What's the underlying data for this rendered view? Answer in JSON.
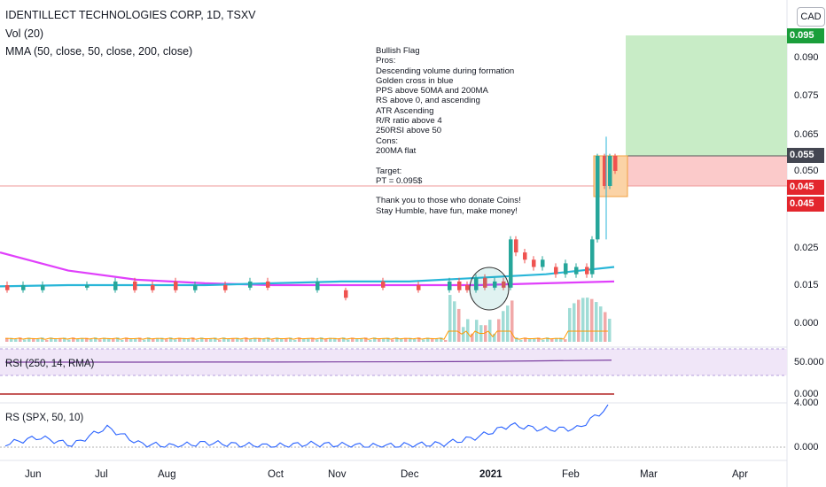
{
  "header": {
    "title": "IDENTILLECT TECHNOLOGIES CORP, 1D, TSXV",
    "vol_label": "Vol (20)",
    "mma_label": "MMA (50, close, 50, close, 200, close)",
    "currency": "CAD"
  },
  "note": {
    "lines": [
      "Bullish Flag",
      "Pros:",
      "Descending volume during formation",
      "Golden cross in blue",
      "PPS above 50MA and 200MA",
      "RS above 0, and ascending",
      "ATR Ascending",
      "R/R ratio above 4",
      "250RSI above 50",
      "Cons:",
      "200MA flat",
      "",
      "Target:",
      "PT = 0.095$",
      "",
      "Thank you to those who donate Coins!",
      "Stay Humble, have fun, make money!"
    ]
  },
  "price_tags": {
    "target": "0.095",
    "last": "0.055",
    "stop1": "0.045",
    "stop2": "0.045"
  },
  "colors": {
    "up": "#26a69a",
    "down": "#ef5350",
    "ma50": "#29b6d8",
    "ma200": "#e040fb",
    "target_zone": "#c8ecc6",
    "stop_zone": "#fbcaca",
    "rsi": "#7b3fa0",
    "rs": "#2962ff"
  },
  "chart_data": [
    {
      "type": "candlestick",
      "title": "IDENTILLECT TECHNOLOGIES CORP, 1D, TSXV",
      "y_ticks": [
        "0.095",
        "0.090",
        "0.075",
        "0.065",
        "0.050",
        "0.025",
        "0.015",
        "0.000"
      ],
      "x_ticks": [
        "Jun",
        "Jul",
        "Aug",
        "Oct",
        "Nov",
        "Dec",
        "2021",
        "Feb",
        "Mar",
        "Apr"
      ],
      "series": [
        {
          "name": "MMA 50",
          "values": [
            0.0145,
            0.015,
            0.015,
            0.015,
            0.0155,
            0.016,
            0.016,
            0.017,
            0.018,
            0.02
          ]
        },
        {
          "name": "MMA 200",
          "values": [
            0.024,
            0.019,
            0.0165,
            0.0155,
            0.015,
            0.015,
            0.015,
            0.015,
            0.0155,
            0.016
          ]
        }
      ],
      "trade_setup": {
        "target": 0.095,
        "entry": 0.055,
        "stop": 0.045
      }
    },
    {
      "type": "line",
      "title": "RSI (250, 14, RMA)",
      "y_ticks": [
        "50.000",
        "0.000"
      ],
      "series": [
        {
          "name": "RSI",
          "values": [
            50.5,
            50.5,
            50.5,
            50.6,
            50.6,
            50.7,
            50.8,
            51,
            51.5,
            52
          ]
        }
      ]
    },
    {
      "type": "line",
      "title": "RS (SPX, 50, 10)",
      "y_ticks": [
        "4.000",
        "0.000"
      ],
      "series": [
        {
          "name": "RS",
          "values": [
            0.3,
            0.9,
            0.2,
            1.8,
            0.3,
            0.1,
            0.4,
            0.2,
            0.1,
            0.3,
            0.2,
            0.1,
            0.2,
            0.3,
            0.9,
            2.0,
            1.6,
            1.7,
            3.8
          ]
        }
      ]
    }
  ]
}
